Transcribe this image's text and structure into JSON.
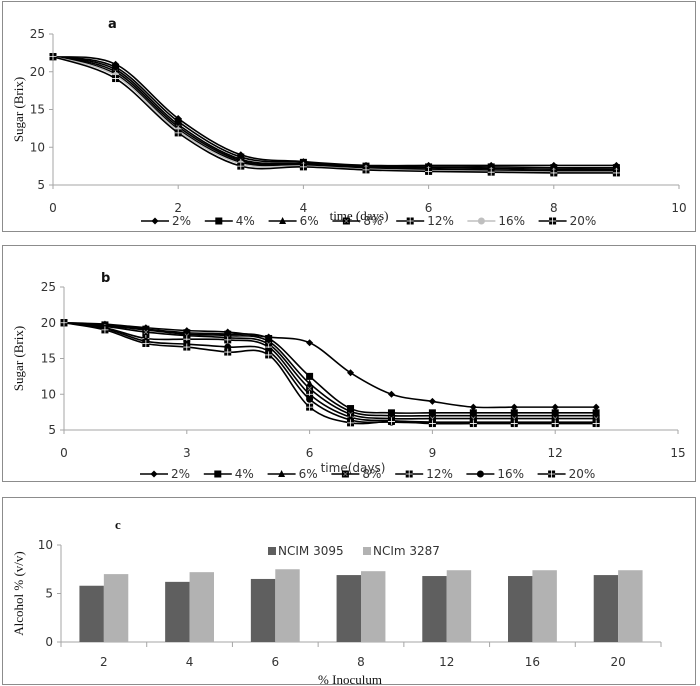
{
  "chart_data": [
    {
      "id": "a",
      "type": "line",
      "title": "a",
      "xlabel": "time (days)",
      "ylabel": "Sugar (Brix)",
      "xlim": [
        0,
        10
      ],
      "ylim": [
        5,
        25
      ],
      "xticks": [
        0,
        2,
        4,
        6,
        8,
        10
      ],
      "yticks": [
        5,
        10,
        15,
        20,
        25
      ],
      "grid": false,
      "legend_position": "bottom",
      "x": [
        0,
        1,
        2,
        3,
        4,
        5,
        6,
        7,
        8,
        9
      ],
      "series": [
        {
          "name": "2%",
          "marker": "diamond",
          "color": "#000000",
          "values": [
            22,
            21.0,
            13.8,
            9.0,
            8.1,
            7.6,
            7.6,
            7.6,
            7.6,
            7.6
          ]
        },
        {
          "name": "4%",
          "marker": "square",
          "color": "#000000",
          "values": [
            22,
            20.6,
            13.4,
            8.7,
            8.0,
            7.5,
            7.4,
            7.4,
            7.3,
            7.3
          ]
        },
        {
          "name": "6%",
          "marker": "triangle",
          "color": "#000000",
          "values": [
            22,
            20.3,
            13.0,
            8.4,
            7.8,
            7.4,
            7.3,
            7.2,
            7.1,
            7.1
          ]
        },
        {
          "name": "8%",
          "marker": "square-x",
          "color": "#000000",
          "values": [
            22,
            20.0,
            12.7,
            8.2,
            7.7,
            7.3,
            7.1,
            7.0,
            6.9,
            6.9
          ]
        },
        {
          "name": "12%",
          "marker": "square-cross",
          "color": "#000000",
          "values": [
            22,
            19.7,
            12.4,
            8.0,
            7.6,
            7.2,
            7.0,
            6.9,
            6.8,
            6.8
          ]
        },
        {
          "name": "16%",
          "marker": "circle",
          "color": "#bfbfbf",
          "values": [
            22,
            19.5,
            12.2,
            7.8,
            7.5,
            7.1,
            6.9,
            6.8,
            6.7,
            6.7
          ]
        },
        {
          "name": "20%",
          "marker": "square-plus",
          "color": "#000000",
          "values": [
            22,
            19.1,
            11.9,
            7.5,
            7.4,
            7.0,
            6.8,
            6.7,
            6.6,
            6.6
          ]
        }
      ]
    },
    {
      "id": "b",
      "type": "line",
      "title": "b",
      "xlabel": "time(days)",
      "ylabel": "Sugar (Brix)",
      "xlim": [
        0,
        15
      ],
      "ylim": [
        5,
        25
      ],
      "xticks": [
        0,
        3,
        6,
        9,
        12,
        15
      ],
      "yticks": [
        5,
        10,
        15,
        20,
        25
      ],
      "grid": false,
      "legend_position": "bottom",
      "x": [
        0,
        1,
        2,
        3,
        4,
        5,
        6,
        7,
        8,
        9,
        10,
        11,
        12,
        13
      ],
      "series": [
        {
          "name": "2%",
          "marker": "diamond",
          "color": "#000000",
          "values": [
            20,
            19.8,
            19.3,
            18.9,
            18.7,
            18.0,
            17.2,
            13.0,
            10.0,
            9.0,
            8.2,
            8.2,
            8.2,
            8.2
          ]
        },
        {
          "name": "4%",
          "marker": "square",
          "color": "#000000",
          "values": [
            20,
            19.7,
            19.1,
            18.6,
            18.4,
            17.8,
            12.5,
            8.0,
            7.4,
            7.4,
            7.4,
            7.4,
            7.4,
            7.4
          ]
        },
        {
          "name": "6%",
          "marker": "triangle",
          "color": "#000000",
          "values": [
            20,
            19.6,
            19.0,
            18.4,
            18.2,
            17.4,
            11.5,
            7.6,
            7.0,
            7.0,
            7.0,
            7.0,
            7.0,
            7.0
          ]
        },
        {
          "name": "8%",
          "marker": "square-x",
          "color": "#000000",
          "values": [
            20,
            19.5,
            18.7,
            18.2,
            17.9,
            17.0,
            10.8,
            7.2,
            6.6,
            6.6,
            6.6,
            6.6,
            6.6,
            6.6
          ]
        },
        {
          "name": "12%",
          "marker": "square-cross",
          "color": "#000000",
          "values": [
            20,
            19.3,
            17.8,
            17.7,
            17.6,
            16.6,
            10.0,
            6.8,
            6.3,
            6.1,
            6.1,
            6.1,
            6.1,
            6.1
          ]
        },
        {
          "name": "16%",
          "marker": "circle",
          "color": "#000000",
          "values": [
            20,
            19.2,
            17.4,
            17.0,
            16.6,
            16.0,
            9.3,
            6.4,
            6.1,
            6.0,
            6.0,
            6.0,
            6.0,
            6.0
          ]
        },
        {
          "name": "20%",
          "marker": "square-plus",
          "color": "#000000",
          "values": [
            20,
            19.0,
            17.1,
            16.6,
            15.9,
            15.5,
            8.2,
            6.0,
            6.2,
            5.9,
            5.9,
            5.9,
            5.9,
            5.9
          ]
        }
      ]
    },
    {
      "id": "c",
      "type": "bar",
      "title": "c",
      "xlabel": "% Inoculum",
      "ylabel": "Alcohol % (v/v)",
      "ylim": [
        0,
        10
      ],
      "yticks": [
        0,
        5,
        10
      ],
      "grid": false,
      "legend_position": "top-center",
      "categories": [
        "2",
        "4",
        "6",
        "8",
        "12",
        "16",
        "20"
      ],
      "series": [
        {
          "name": "NCIM 3095",
          "color": "#5f5f5f",
          "values": [
            5.8,
            6.2,
            6.5,
            6.9,
            6.8,
            6.8,
            6.9
          ]
        },
        {
          "name": "NCIm 3287",
          "color": "#b2b2b2",
          "values": [
            7.0,
            7.2,
            7.5,
            7.3,
            7.4,
            7.4,
            7.4
          ]
        }
      ]
    }
  ]
}
